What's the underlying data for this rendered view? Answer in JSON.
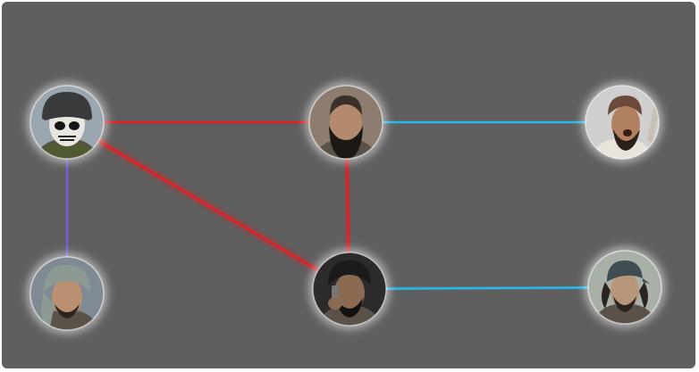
{
  "graph": {
    "background": "#5f5f5f",
    "colors": {
      "red": "#e41e26",
      "blue": "#29b6e8",
      "purple": "#7a5bd6",
      "glow": "#ffffff"
    },
    "nodes": [
      {
        "id": "n1",
        "name": "node-skull-helmet",
        "avatar": "skull-mask-helmet",
        "skin": "#e9e6e0",
        "hair": "#3a3a3a",
        "bg": "#9aa7b0"
      },
      {
        "id": "n2",
        "name": "node-bearded-man-center",
        "avatar": "bearded-man",
        "skin": "#b48a6e",
        "hair": "#1e1815",
        "bg": "#8c7d70"
      },
      {
        "id": "n3",
        "name": "node-shouting-man",
        "avatar": "shouting-man",
        "skin": "#b08060",
        "hair": "#2a211b",
        "bg": "#cfcfcf"
      },
      {
        "id": "n4",
        "name": "node-turban-man",
        "avatar": "turban-man",
        "skin": "#b99070",
        "hair": "#2c2420",
        "bg": "#7f8a94"
      },
      {
        "id": "n5",
        "name": "node-man-with-phone",
        "avatar": "man-with-phone",
        "skin": "#8b6a52",
        "hair": "#141210",
        "bg": "#2b2b2b"
      },
      {
        "id": "n6",
        "name": "node-cap-man",
        "avatar": "cap-man",
        "skin": "#b8967a",
        "hair": "#2a2420",
        "bg": "#a8b0a8"
      }
    ],
    "edges": [
      {
        "from": "n1",
        "to": "n2",
        "color": "red"
      },
      {
        "from": "n2",
        "to": "n3",
        "color": "blue"
      },
      {
        "from": "n1",
        "to": "n4",
        "color": "purple"
      },
      {
        "from": "n1",
        "to": "n5",
        "color": "red"
      },
      {
        "from": "n2",
        "to": "n5",
        "color": "red"
      },
      {
        "from": "n5",
        "to": "n6",
        "color": "blue"
      }
    ]
  }
}
